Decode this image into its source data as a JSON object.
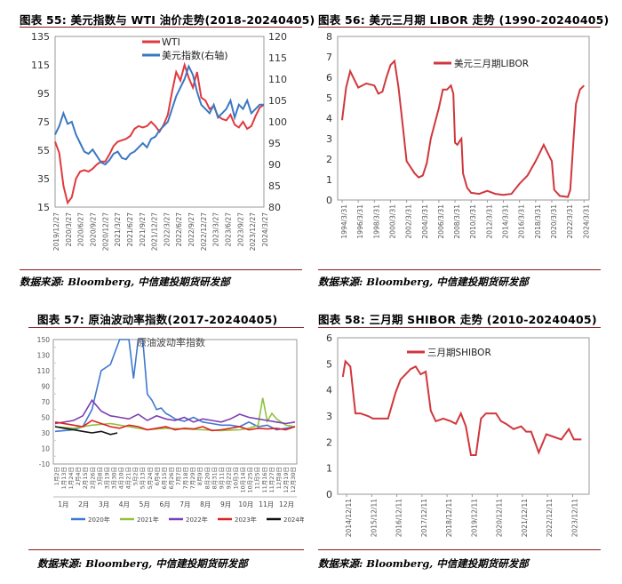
{
  "panels": {
    "p55": {
      "title": "图表 55:  美元指数与 WTI 油价走势(2018-20240405)",
      "source": "数据来源: Bloomberg, 中信建投期货研发部"
    },
    "p56": {
      "title": "图表 56:  美元三月期 LIBOR 走势 (1990-20240405)",
      "source": "数据来源: Bloomberg, 中信建投期货研发部"
    },
    "p57": {
      "title": "图表 57:  原油波动率指数(2017-20240405)",
      "source": "数据来源: Bloomberg, 中信建投期货研发部"
    },
    "p58": {
      "title": "图表 58:  三月期 SHIBOR 走势 (2010-20240405)",
      "source": "数据来源: Bloomberg, 中信建投期货研发部"
    }
  },
  "chart_data": [
    {
      "id": "c55",
      "type": "line",
      "x_tick_labels": [
        "2019/12/27",
        "2020/3/27",
        "2020/6/27",
        "2020/9/27",
        "2020/12/27",
        "2021/3/27",
        "2021/6/27",
        "2021/9/27",
        "2021/12/27",
        "2022/3/27",
        "2022/6/27",
        "2022/9/27",
        "2022/12/27",
        "2023/3/27",
        "2023/6/27",
        "2023/9/27",
        "2023/12/27",
        "2024/3/27"
      ],
      "ylim": [
        15,
        135
      ],
      "y_ticks": [
        15,
        35,
        55,
        75,
        95,
        115,
        135
      ],
      "y2lim": [
        80,
        120
      ],
      "y2_ticks": [
        80,
        85,
        90,
        95,
        100,
        105,
        110,
        115,
        120
      ],
      "legend_position": "top-center",
      "series": [
        {
          "name": "WTI",
          "axis": "left",
          "color": "#e03a3e",
          "x": [
            0,
            1,
            2,
            3,
            4,
            5,
            6,
            7,
            8,
            9,
            10,
            11,
            12,
            13,
            14,
            15,
            16,
            17,
            18,
            19,
            20,
            21,
            22,
            23,
            24,
            25,
            26,
            27,
            28,
            29,
            30,
            31,
            32,
            33,
            34,
            35,
            36,
            37,
            38,
            39,
            40,
            41,
            42,
            43,
            44,
            45,
            46,
            47,
            48,
            49,
            50
          ],
          "values": [
            61,
            53,
            30,
            18,
            22,
            35,
            40,
            41,
            40,
            42,
            45,
            47,
            47,
            52,
            58,
            61,
            62,
            63,
            65,
            70,
            72,
            71,
            72,
            75,
            72,
            68,
            73,
            80,
            96,
            110,
            104,
            115,
            106,
            99,
            110,
            92,
            90,
            84,
            86,
            79,
            77,
            76,
            80,
            73,
            71,
            75,
            70,
            72,
            79,
            85,
            87
          ]
        },
        {
          "name": "美元指数(右轴)",
          "axis": "right",
          "color": "#3a78c2",
          "x": [
            0,
            1,
            2,
            3,
            4,
            5,
            6,
            7,
            8,
            9,
            10,
            11,
            12,
            13,
            14,
            15,
            16,
            17,
            18,
            19,
            20,
            21,
            22,
            23,
            24,
            25,
            26,
            27,
            28,
            29,
            30,
            31,
            32,
            33,
            34,
            35,
            36,
            37,
            38,
            39,
            40,
            41,
            42,
            43,
            44,
            45,
            46,
            47,
            48,
            49,
            50
          ],
          "values": [
            97,
            99,
            102,
            99.5,
            100,
            97,
            95,
            93,
            92.5,
            93.5,
            92,
            90.5,
            90,
            91,
            92.5,
            93,
            91.5,
            91.2,
            92.5,
            93,
            94,
            95,
            94,
            96,
            96.5,
            98,
            99,
            100,
            103,
            106,
            108,
            110,
            113,
            111,
            107,
            104,
            103,
            102,
            104,
            101,
            102,
            103,
            105,
            101,
            104,
            103,
            105,
            102,
            103,
            104,
            104
          ]
        }
      ]
    },
    {
      "id": "c56",
      "type": "line",
      "x_tick_labels": [
        "1994/3/31",
        "1996/3/31",
        "1998/3/31",
        "2000/3/31",
        "2002/3/31",
        "2004/3/31",
        "2006/3/31",
        "2008/3/31",
        "2010/3/31",
        "2012/3/31",
        "2014/3/31",
        "2016/3/31",
        "2018/3/31",
        "2020/3/31",
        "2022/3/31",
        "2024/3/31"
      ],
      "ylim": [
        0,
        8
      ],
      "y_ticks": [
        0,
        1,
        2,
        3,
        4,
        5,
        6,
        7,
        8
      ],
      "legend_position": "top-center",
      "series": [
        {
          "name": "美元三月期LIBOR",
          "color": "#d0373c",
          "x": [
            1994,
            1994.5,
            1995,
            1995.5,
            1996,
            1997,
            1998,
            1998.5,
            1999,
            1999.5,
            2000,
            2000.5,
            2001,
            2001.5,
            2002,
            2003,
            2003.5,
            2004,
            2004.5,
            2005,
            2006,
            2006.5,
            2007,
            2007.5,
            2007.8,
            2008,
            2008.3,
            2008.6,
            2008.8,
            2009,
            2009.5,
            2010,
            2011,
            2012,
            2013,
            2014,
            2015,
            2016,
            2017,
            2018,
            2018.5,
            2019,
            2019.5,
            2020,
            2020.3,
            2021,
            2022,
            2022.3,
            2022.7,
            2023,
            2023.5,
            2024
          ],
          "values": [
            3.9,
            5.5,
            6.3,
            5.9,
            5.5,
            5.7,
            5.6,
            5.2,
            5.3,
            6,
            6.6,
            6.8,
            5.5,
            3.7,
            1.9,
            1.3,
            1.1,
            1.2,
            1.8,
            3,
            4.5,
            5.4,
            5.4,
            5.6,
            5.2,
            2.8,
            2.7,
            2.9,
            3,
            1.3,
            0.6,
            0.35,
            0.3,
            0.45,
            0.3,
            0.25,
            0.3,
            0.8,
            1.2,
            1.9,
            2.3,
            2.7,
            2.3,
            1.9,
            0.5,
            0.2,
            0.15,
            0.5,
            3,
            4.7,
            5.4,
            5.6
          ]
        }
      ]
    },
    {
      "id": "c57",
      "type": "line",
      "x_tick_labels": [
        "1月2日",
        "1月13日",
        "1月24日",
        "2月4日",
        "2月15日",
        "2月26日",
        "3月8日",
        "3月19日",
        "3月30日",
        "4月10日",
        "4月21日",
        "5月2日",
        "5月13日",
        "5月24日",
        "6月4日",
        "6月15日",
        "6月26日",
        "7月7日",
        "7月18日",
        "7月29日",
        "8月9日",
        "8月20日",
        "8月31日",
        "9月11日",
        "9月22日",
        "10月3日",
        "10月14日",
        "10月25日",
        "11月5日",
        "11月16日",
        "11月27日",
        "12月8日",
        "12月19日",
        "12月30日"
      ],
      "month_labels": [
        "1月",
        "2月",
        "3月",
        "4月",
        "5月",
        "6月",
        "7月",
        "8月",
        "9月",
        "10月",
        "11月",
        "12月"
      ],
      "ylim": [
        -10,
        150
      ],
      "y_ticks": [
        -10,
        10,
        30,
        50,
        70,
        90,
        110,
        130,
        150
      ],
      "y_tick_labels": [
        "-10",
        "10",
        "30",
        "50",
        "70",
        "90",
        "110",
        "130",
        "150"
      ],
      "y_minor_ticks": [
        0,
        20,
        40,
        60,
        80,
        100,
        120,
        140
      ],
      "legend_position": "bottom",
      "annotation": "原油波动率指数",
      "series": [
        {
          "name": "2020年",
          "color": "#3e78d0",
          "x": [
            0,
            2,
            4,
            6,
            8,
            10,
            12,
            14,
            15,
            16,
            17,
            18,
            19,
            20,
            21,
            22,
            23,
            24,
            25,
            26,
            28,
            30,
            32,
            34,
            36,
            38,
            40,
            42,
            44,
            46,
            48,
            50,
            52
          ],
          "values": [
            32,
            33,
            34,
            38,
            60,
            110,
            118,
            150,
            150,
            150,
            100,
            150,
            150,
            80,
            72,
            60,
            62,
            55,
            52,
            48,
            45,
            50,
            44,
            42,
            40,
            40,
            38,
            44,
            38,
            40,
            34,
            36,
            38
          ]
        },
        {
          "name": "2021年",
          "color": "#8fc23e",
          "x": [
            0,
            4,
            8,
            12,
            16,
            20,
            24,
            28,
            32,
            36,
            40,
            42,
            44,
            45,
            46,
            47,
            48,
            50,
            52
          ],
          "values": [
            38,
            36,
            40,
            42,
            38,
            34,
            36,
            35,
            34,
            33,
            34,
            36,
            40,
            75,
            45,
            55,
            48,
            40,
            38
          ]
        },
        {
          "name": "2022年",
          "color": "#7b3fb0",
          "x": [
            0,
            4,
            6,
            8,
            10,
            12,
            14,
            16,
            18,
            20,
            22,
            24,
            26,
            28,
            30,
            32,
            34,
            36,
            38,
            40,
            42,
            44,
            46,
            48,
            50,
            52
          ],
          "values": [
            42,
            46,
            52,
            72,
            58,
            52,
            50,
            48,
            54,
            46,
            52,
            48,
            46,
            50,
            44,
            48,
            46,
            44,
            48,
            54,
            50,
            48,
            46,
            44,
            42,
            44
          ]
        },
        {
          "name": "2023年",
          "color": "#e02020",
          "x": [
            0,
            4,
            6,
            8,
            10,
            12,
            14,
            16,
            18,
            20,
            22,
            24,
            26,
            28,
            30,
            32,
            34,
            36,
            38,
            40,
            42,
            44,
            46,
            48,
            50,
            52
          ],
          "values": [
            44,
            40,
            38,
            46,
            42,
            38,
            36,
            40,
            38,
            34,
            36,
            38,
            34,
            36,
            35,
            38,
            33,
            34,
            36,
            38,
            34,
            36,
            35,
            36,
            34,
            38
          ]
        },
        {
          "name": "2024年",
          "color": "#111111",
          "x": [
            0,
            2,
            4,
            6,
            8,
            10,
            12,
            13.5
          ],
          "values": [
            38,
            36,
            34,
            32,
            30,
            32,
            28,
            30
          ]
        }
      ]
    },
    {
      "id": "c58",
      "type": "line",
      "x_tick_labels": [
        "2014/12/11",
        "2015/12/11",
        "2016/12/11",
        "2017/12/11",
        "2018/12/11",
        "2019/12/11",
        "2020/12/11",
        "2021/12/11",
        "2022/12/11",
        "2023/12/11"
      ],
      "ylim": [
        0,
        6
      ],
      "y_ticks": [
        0,
        1,
        2,
        3,
        4,
        5,
        6
      ],
      "legend_position": "top-center",
      "series": [
        {
          "name": "三月期SHIBOR",
          "color": "#d0373c",
          "x": [
            2014.8,
            2014.9,
            2015.1,
            2015.3,
            2015.5,
            2015.8,
            2016,
            2016.3,
            2016.6,
            2016.9,
            2017.1,
            2017.3,
            2017.5,
            2017.7,
            2017.9,
            2018.1,
            2018.3,
            2018.5,
            2018.8,
            2019.1,
            2019.3,
            2019.5,
            2019.7,
            2019.9,
            2020.1,
            2020.3,
            2020.5,
            2020.7,
            2020.9,
            2021.1,
            2021.3,
            2021.6,
            2021.9,
            2022.1,
            2022.3,
            2022.6,
            2022.9,
            2023.2,
            2023.5,
            2023.8,
            2024.0,
            2024.3
          ],
          "values": [
            4.5,
            5.1,
            4.9,
            3.1,
            3.1,
            3,
            2.9,
            2.9,
            2.9,
            3.9,
            4.4,
            4.6,
            4.8,
            4.9,
            4.6,
            4.7,
            3.2,
            2.8,
            2.9,
            2.8,
            2.7,
            3.1,
            2.6,
            1.5,
            1.5,
            2.9,
            3.1,
            3.1,
            3.1,
            2.8,
            2.7,
            2.5,
            2.6,
            2.4,
            2.4,
            1.6,
            2.3,
            2.2,
            2.1,
            2.5,
            2.1,
            2.1
          ]
        }
      ]
    }
  ]
}
